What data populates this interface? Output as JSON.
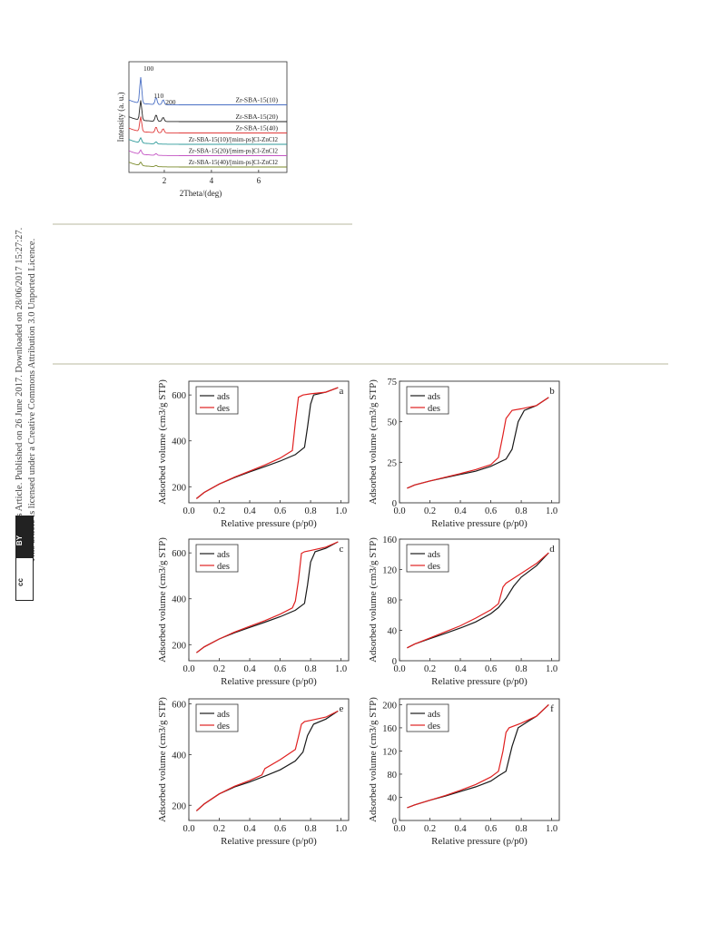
{
  "margin_note": {
    "line1": "Open Access Article. Published on 26 June 2017. Downloaded on 28/06/2017 15:27:27.",
    "line2": "This article is licensed under a Creative Commons Attribution 3.0 Unported Licence.",
    "badge_cc": "cc",
    "badge_by": "BY"
  },
  "chart_data": [
    {
      "type": "line",
      "ylabel": "Intensity (a. u.)",
      "xlabel": "2Theta/(deg)",
      "xlim": [
        0.5,
        7.2
      ],
      "xticks": [
        "2",
        "4",
        "6"
      ],
      "peak_labels": [
        "100",
        "110",
        "200"
      ],
      "series": [
        {
          "name": "Zr-SBA-15(10)",
          "color": "#4a6fc4",
          "offset": 6,
          "peaks": [
            [
              1.0,
              3.2
            ],
            [
              1.65,
              0.9
            ],
            [
              1.95,
              0.6
            ]
          ]
        },
        {
          "name": "Zr-SBA-15(20)",
          "color": "#222222",
          "offset": 5,
          "peaks": [
            [
              1.0,
              2.4
            ],
            [
              1.65,
              0.8
            ],
            [
              1.95,
              0.5
            ]
          ]
        },
        {
          "name": "Zr-SBA-15(40)",
          "color": "#e03a3a",
          "offset": 4,
          "peaks": [
            [
              1.0,
              1.8
            ],
            [
              1.65,
              0.7
            ],
            [
              1.95,
              0.5
            ]
          ]
        },
        {
          "name": "Zr-SBA-15(10)/[mim-ps]Cl-ZnCl2",
          "color": "#2e9a9a",
          "offset": 3,
          "peaks": [
            [
              1.0,
              0.6
            ],
            [
              1.65,
              0.25
            ]
          ]
        },
        {
          "name": "Zr-SBA-15(20)/[mim-ps]Cl-ZnCl2",
          "color": "#c455c4",
          "offset": 2,
          "peaks": [
            [
              1.0,
              0.5
            ],
            [
              1.65,
              0.2
            ]
          ]
        },
        {
          "name": "Zr-SBA-15(40)/[mim-ps]Cl-ZnCl2",
          "color": "#7a8a2a",
          "offset": 1,
          "peaks": [
            [
              1.0,
              0.4
            ],
            [
              1.65,
              0.15
            ]
          ]
        }
      ]
    },
    {
      "type": "line",
      "panel": "a",
      "xlabel": "Relative pressure (p/p0)",
      "ylabel": "Adsorbed volume (cm3/g STP)",
      "xlim": [
        0,
        1.05
      ],
      "ylim": [
        130,
        660
      ],
      "yticks": [
        200,
        400,
        600
      ],
      "xticks": [
        0.0,
        0.2,
        0.4,
        0.6,
        0.8,
        1.0
      ],
      "series": [
        {
          "name": "ads",
          "color": "#1a1a1a",
          "x": [
            0.05,
            0.1,
            0.2,
            0.3,
            0.4,
            0.5,
            0.6,
            0.7,
            0.76,
            0.78,
            0.8,
            0.82,
            0.9,
            0.98
          ],
          "y": [
            148,
            175,
            212,
            240,
            265,
            288,
            312,
            340,
            372,
            460,
            560,
            600,
            612,
            632
          ]
        },
        {
          "name": "des",
          "color": "#e02020",
          "x": [
            0.98,
            0.9,
            0.8,
            0.75,
            0.72,
            0.7,
            0.68,
            0.6,
            0.5,
            0.4,
            0.3,
            0.2,
            0.1,
            0.05
          ],
          "y": [
            632,
            612,
            605,
            600,
            590,
            480,
            358,
            325,
            295,
            268,
            242,
            212,
            175,
            148
          ]
        }
      ]
    },
    {
      "type": "line",
      "panel": "b",
      "xlabel": "Relative pressure (p/p0)",
      "ylabel": "Adsorbed volume (cm3/g STP)",
      "xlim": [
        0,
        1.05
      ],
      "ylim": [
        0,
        75
      ],
      "yticks": [
        0,
        25,
        50,
        75
      ],
      "xticks": [
        0.0,
        0.2,
        0.4,
        0.6,
        0.8,
        1.0
      ],
      "series": [
        {
          "name": "ads",
          "color": "#1a1a1a",
          "x": [
            0.05,
            0.1,
            0.2,
            0.3,
            0.4,
            0.5,
            0.6,
            0.7,
            0.74,
            0.78,
            0.82,
            0.9,
            0.98
          ],
          "y": [
            9,
            11,
            13.5,
            15.5,
            17.5,
            19.5,
            22.5,
            27,
            33,
            50,
            57,
            60,
            65
          ]
        },
        {
          "name": "des",
          "color": "#e02020",
          "x": [
            0.98,
            0.9,
            0.8,
            0.74,
            0.7,
            0.68,
            0.65,
            0.6,
            0.5,
            0.4,
            0.3,
            0.2,
            0.1,
            0.05
          ],
          "y": [
            65,
            60,
            58,
            57,
            52,
            42,
            28,
            23.5,
            20.5,
            18,
            15.8,
            13.5,
            11,
            9
          ]
        }
      ]
    },
    {
      "type": "line",
      "panel": "c",
      "xlabel": "Relative pressure (p/p0)",
      "ylabel": "Adsorbed volume (cm3/g STP)",
      "xlim": [
        0,
        1.05
      ],
      "ylim": [
        130,
        660
      ],
      "yticks": [
        200,
        400,
        600
      ],
      "xticks": [
        0.0,
        0.2,
        0.4,
        0.6,
        0.8,
        1.0
      ],
      "series": [
        {
          "name": "ads",
          "color": "#1a1a1a",
          "x": [
            0.05,
            0.1,
            0.2,
            0.3,
            0.4,
            0.5,
            0.6,
            0.7,
            0.76,
            0.78,
            0.8,
            0.83,
            0.9,
            0.98
          ],
          "y": [
            165,
            190,
            225,
            252,
            275,
            298,
            322,
            350,
            380,
            460,
            560,
            605,
            620,
            648
          ]
        },
        {
          "name": "des",
          "color": "#e02020",
          "x": [
            0.98,
            0.9,
            0.8,
            0.76,
            0.74,
            0.72,
            0.7,
            0.68,
            0.6,
            0.5,
            0.4,
            0.3,
            0.2,
            0.1,
            0.05
          ],
          "y": [
            648,
            625,
            610,
            605,
            598,
            480,
            390,
            360,
            333,
            305,
            280,
            255,
            225,
            190,
            165
          ]
        }
      ]
    },
    {
      "type": "line",
      "panel": "d",
      "xlabel": "Relative pressure (p/p0)",
      "ylabel": "Adsorbed volume (cm3/g STP)",
      "xlim": [
        0,
        1.05
      ],
      "ylim": [
        0,
        160
      ],
      "yticks": [
        0,
        40,
        80,
        120,
        160
      ],
      "xticks": [
        0.0,
        0.2,
        0.4,
        0.6,
        0.8,
        1.0
      ],
      "series": [
        {
          "name": "ads",
          "color": "#1a1a1a",
          "x": [
            0.05,
            0.1,
            0.2,
            0.3,
            0.4,
            0.5,
            0.6,
            0.65,
            0.7,
            0.75,
            0.8,
            0.9,
            0.98
          ],
          "y": [
            17,
            22,
            29,
            36,
            43,
            51,
            62,
            70,
            82,
            98,
            110,
            125,
            142
          ]
        },
        {
          "name": "des",
          "color": "#e02020",
          "x": [
            0.98,
            0.9,
            0.8,
            0.7,
            0.68,
            0.65,
            0.6,
            0.5,
            0.4,
            0.3,
            0.2,
            0.1,
            0.05
          ],
          "y": [
            142,
            128,
            115,
            102,
            97,
            75,
            67,
            56,
            46,
            38,
            30,
            22,
            17
          ]
        }
      ]
    },
    {
      "type": "line",
      "panel": "e",
      "xlabel": "Relative pressure (p/p0)",
      "ylabel": "Adsorbed volume (cm3/g STP)",
      "xlim": [
        0,
        1.05
      ],
      "ylim": [
        140,
        620
      ],
      "yticks": [
        200,
        400,
        600
      ],
      "xticks": [
        0.0,
        0.2,
        0.4,
        0.6,
        0.8,
        1.0
      ],
      "series": [
        {
          "name": "ads",
          "color": "#1a1a1a",
          "x": [
            0.05,
            0.1,
            0.2,
            0.3,
            0.4,
            0.5,
            0.6,
            0.7,
            0.75,
            0.78,
            0.82,
            0.9,
            0.98
          ],
          "y": [
            178,
            205,
            245,
            272,
            292,
            315,
            340,
            375,
            410,
            475,
            520,
            540,
            572
          ]
        },
        {
          "name": "des",
          "color": "#e02020",
          "x": [
            0.98,
            0.9,
            0.8,
            0.76,
            0.74,
            0.72,
            0.7,
            0.6,
            0.5,
            0.48,
            0.4,
            0.3,
            0.2,
            0.1,
            0.05
          ],
          "y": [
            572,
            548,
            535,
            530,
            520,
            470,
            420,
            380,
            345,
            320,
            298,
            275,
            245,
            205,
            178
          ]
        }
      ]
    },
    {
      "type": "line",
      "panel": "f",
      "xlabel": "Relative pressure (p/p0)",
      "ylabel": "Adsorbed volume (cm3/g STP)",
      "xlim": [
        0,
        1.05
      ],
      "ylim": [
        0,
        210
      ],
      "yticks": [
        0,
        40,
        80,
        120,
        160,
        200
      ],
      "xticks": [
        0.0,
        0.2,
        0.4,
        0.6,
        0.8,
        1.0
      ],
      "series": [
        {
          "name": "ads",
          "color": "#1a1a1a",
          "x": [
            0.05,
            0.1,
            0.2,
            0.3,
            0.4,
            0.5,
            0.6,
            0.65,
            0.7,
            0.74,
            0.78,
            0.85,
            0.9,
            0.98
          ],
          "y": [
            22,
            27,
            35,
            42,
            50,
            58,
            68,
            77,
            85,
            128,
            160,
            172,
            180,
            200
          ]
        },
        {
          "name": "des",
          "color": "#e02020",
          "x": [
            0.98,
            0.9,
            0.8,
            0.72,
            0.7,
            0.68,
            0.65,
            0.6,
            0.5,
            0.4,
            0.3,
            0.2,
            0.1,
            0.05
          ],
          "y": [
            200,
            180,
            168,
            160,
            152,
            120,
            85,
            75,
            62,
            52,
            43,
            35,
            27,
            22
          ]
        }
      ]
    }
  ]
}
